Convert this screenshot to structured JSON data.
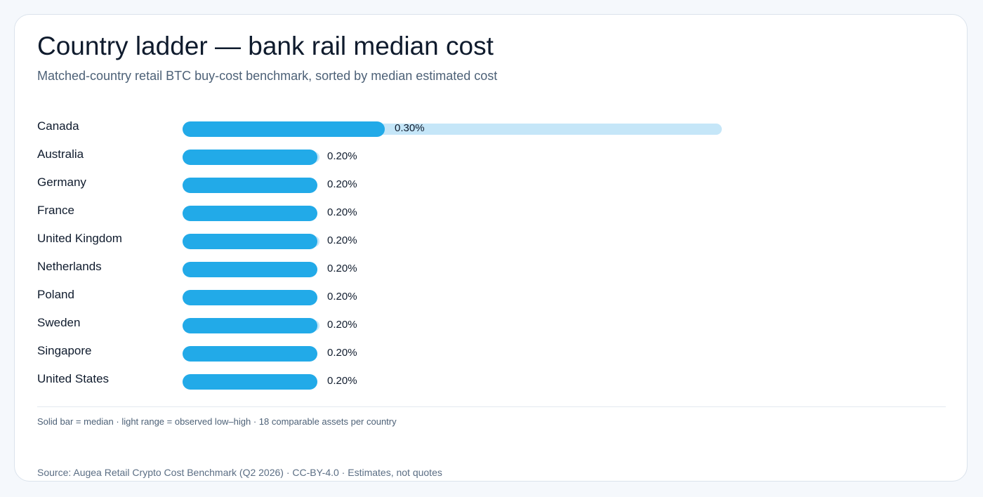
{
  "chart_data": {
    "type": "bar",
    "title": "Country ladder — bank rail median cost",
    "subtitle": "Matched-country retail BTC buy-cost benchmark, sorted by median estimated cost",
    "unit": "%",
    "categories": [
      "Canada",
      "Australia",
      "Germany",
      "France",
      "United Kingdom",
      "Netherlands",
      "Poland",
      "Sweden",
      "Singapore",
      "United States"
    ],
    "values": [
      0.3,
      0.2,
      0.2,
      0.2,
      0.2,
      0.2,
      0.2,
      0.2,
      0.2,
      0.2
    ],
    "labels": [
      "0.30%",
      "0.20%",
      "0.20%",
      "0.20%",
      "0.20%",
      "0.20%",
      "0.20%",
      "0.20%",
      "0.20%",
      "0.20%"
    ],
    "range_high": [
      0.8,
      0.203,
      0.2,
      0.2,
      0.203,
      0.2,
      0.2,
      0.203,
      0.2,
      0.2
    ],
    "colors": {
      "median": "#22aae8",
      "range": "#c5e6f8"
    },
    "legend_note": "Solid bar = median · light range = observed low–high · 18 comparable assets per country"
  },
  "source": "Source: Augea Retail Crypto Cost Benchmark (Q2 2026) · CC-BY-4.0 · Estimates, not quotes"
}
